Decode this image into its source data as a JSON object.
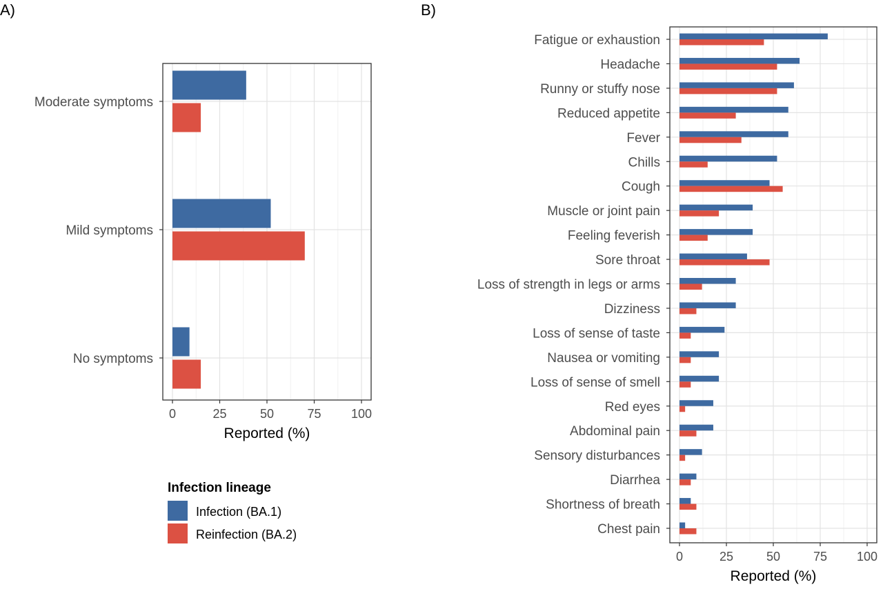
{
  "chart_data": [
    {
      "panel": "A)",
      "type": "bar",
      "orientation": "horizontal",
      "categories": [
        "Moderate symptoms",
        "Mild symptoms",
        "No symptoms"
      ],
      "series": [
        {
          "name": "Infection (BA.1)",
          "color": "#3e6aa1",
          "values": [
            39,
            52,
            9
          ]
        },
        {
          "name": "Reinfection (BA.2)",
          "color": "#dc5143",
          "values": [
            15,
            70,
            15
          ]
        }
      ],
      "xlabel": "Reported (%)",
      "xlim": [
        0,
        100
      ],
      "ticks": [
        "0",
        "25",
        "50",
        "75",
        "100"
      ],
      "grid": true
    },
    {
      "panel": "B)",
      "type": "bar",
      "orientation": "horizontal",
      "categories": [
        "Fatigue or exhaustion",
        "Headache",
        "Runny or stuffy nose",
        "Reduced appetite",
        "Fever",
        "Chills",
        "Cough",
        "Muscle or joint pain",
        "Feeling feverish",
        "Sore throat",
        "Loss of strength in legs or arms",
        "Dizziness",
        "Loss of sense of taste",
        "Nausea or vomiting",
        "Loss of sense of smell",
        "Red eyes",
        "Abdominal pain",
        "Sensory disturbances",
        "Diarrhea",
        "Shortness of breath",
        "Chest pain"
      ],
      "series": [
        {
          "name": "Infection (BA.1)",
          "color": "#3e6aa1",
          "values": [
            79,
            64,
            61,
            58,
            58,
            52,
            48,
            39,
            39,
            36,
            30,
            30,
            24,
            21,
            21,
            18,
            18,
            12,
            9,
            6,
            3
          ]
        },
        {
          "name": "Reinfection (BA.2)",
          "color": "#dc5143",
          "values": [
            45,
            52,
            52,
            30,
            33,
            15,
            55,
            21,
            15,
            48,
            12,
            9,
            6,
            6,
            6,
            3,
            9,
            3,
            6,
            9,
            9
          ]
        }
      ],
      "xlabel": "Reported (%)",
      "xlim": [
        0,
        100
      ],
      "ticks": [
        "0",
        "25",
        "50",
        "75",
        "100"
      ],
      "grid": true
    }
  ],
  "legend": {
    "title": "Infection lineage",
    "items": [
      {
        "label": "Infection (BA.1)",
        "color": "#3e6aa1"
      },
      {
        "label": "Reinfection (BA.2)",
        "color": "#dc5143"
      }
    ],
    "placement": "bottom-left"
  }
}
